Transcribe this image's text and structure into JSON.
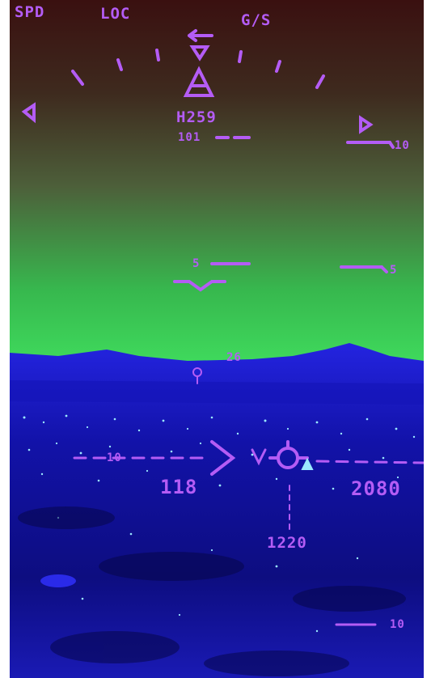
{
  "hud": {
    "annunciators": {
      "speed_mode": "SPD",
      "lateral_mode": "LOC",
      "vertical_mode": "G/S"
    },
    "heading": {
      "selected": "H259",
      "scale_value": "101"
    },
    "pitch": {
      "upper_right_label": "10",
      "lower_right_label": "5",
      "lower_left_label": "5"
    },
    "horizon_heading": "26",
    "airspeed": "118",
    "altitude": "2080",
    "radio_altitude": "1220",
    "glideslope_label": "10",
    "bottom_scale_label": "10"
  },
  "colors": {
    "symbology": "#b45cf5",
    "sky_top": "#3a1010",
    "sky_mid": "#4c5a35",
    "horizon_glow": "#3dd65a",
    "terrain": "#1a1ad0",
    "city_lights": "#9ae8ff"
  }
}
